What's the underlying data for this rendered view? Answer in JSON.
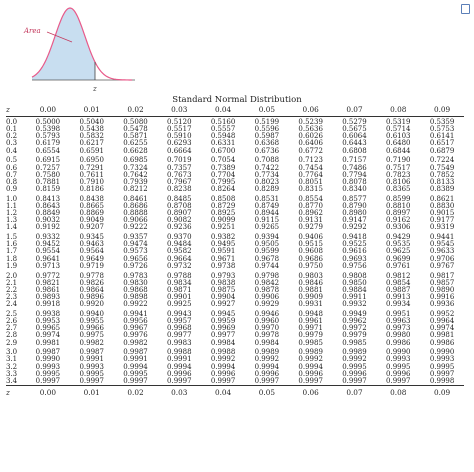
{
  "figure": {
    "area_label": "Area",
    "z_label": "z"
  },
  "title": "Standard Normal Distribution",
  "headers": [
    "z",
    "0.00",
    "0.01",
    "0.02",
    "0.03",
    "0.04",
    "0.05",
    "0.06",
    "0.07",
    "0.08",
    "0.09"
  ],
  "rows": [
    [
      "0.0",
      "0.5000",
      "0.5040",
      "0.5080",
      "0.5120",
      "0.5160",
      "0.5199",
      "0.5239",
      "0.5279",
      "0.5319",
      "0.5359"
    ],
    [
      "0.1",
      "0.5398",
      "0.5438",
      "0.5478",
      "0.5517",
      "0.5557",
      "0.5596",
      "0.5636",
      "0.5675",
      "0.5714",
      "0.5753"
    ],
    [
      "0.2",
      "0.5793",
      "0.5832",
      "0.5871",
      "0.5910",
      "0.5948",
      "0.5987",
      "0.6026",
      "0.6064",
      "0.6103",
      "0.6141"
    ],
    [
      "0.3",
      "0.6179",
      "0.6217",
      "0.6255",
      "0.6293",
      "0.6331",
      "0.6368",
      "0.6406",
      "0.6443",
      "0.6480",
      "0.6517"
    ],
    [
      "0.4",
      "0.6554",
      "0.6591",
      "0.6628",
      "0.6664",
      "0.6700",
      "0.6736",
      "0.6772",
      "0.6808",
      "0.6844",
      "0.6879"
    ],
    [
      "0.5",
      "0.6915",
      "0.6950",
      "0.6985",
      "0.7019",
      "0.7054",
      "0.7088",
      "0.7123",
      "0.7157",
      "0.7190",
      "0.7224"
    ],
    [
      "0.6",
      "0.7257",
      "0.7291",
      "0.7324",
      "0.7357",
      "0.7389",
      "0.7422",
      "0.7454",
      "0.7486",
      "0.7517",
      "0.7549"
    ],
    [
      "0.7",
      "0.7580",
      "0.7611",
      "0.7642",
      "0.7673",
      "0.7704",
      "0.7734",
      "0.7764",
      "0.7794",
      "0.7823",
      "0.7852"
    ],
    [
      "0.8",
      "0.7881",
      "0.7910",
      "0.7939",
      "0.7967",
      "0.7995",
      "0.8023",
      "0.8051",
      "0.8078",
      "0.8106",
      "0.8133"
    ],
    [
      "0.9",
      "0.8159",
      "0.8186",
      "0.8212",
      "0.8238",
      "0.8264",
      "0.8289",
      "0.8315",
      "0.8340",
      "0.8365",
      "0.8389"
    ],
    [
      "1.0",
      "0.8413",
      "0.8438",
      "0.8461",
      "0.8485",
      "0.8508",
      "0.8531",
      "0.8554",
      "0.8577",
      "0.8599",
      "0.8621"
    ],
    [
      "1.1",
      "0.8643",
      "0.8665",
      "0.8686",
      "0.8708",
      "0.8729",
      "0.8749",
      "0.8770",
      "0.8790",
      "0.8810",
      "0.8830"
    ],
    [
      "1.2",
      "0.8849",
      "0.8869",
      "0.8888",
      "0.8907",
      "0.8925",
      "0.8944",
      "0.8962",
      "0.8980",
      "0.8997",
      "0.9015"
    ],
    [
      "1.3",
      "0.9032",
      "0.9049",
      "0.9066",
      "0.9082",
      "0.9099",
      "0.9115",
      "0.9131",
      "0.9147",
      "0.9162",
      "0.9177"
    ],
    [
      "1.4",
      "0.9192",
      "0.9207",
      "0.9222",
      "0.9236",
      "0.9251",
      "0.9265",
      "0.9279",
      "0.9292",
      "0.9306",
      "0.9319"
    ],
    [
      "1.5",
      "0.9332",
      "0.9345",
      "0.9357",
      "0.9370",
      "0.9382",
      "0.9394",
      "0.9406",
      "0.9418",
      "0.9429",
      "0.9441"
    ],
    [
      "1.6",
      "0.9452",
      "0.9463",
      "0.9474",
      "0.9484",
      "0.9495",
      "0.9505",
      "0.9515",
      "0.9525",
      "0.9535",
      "0.9545"
    ],
    [
      "1.7",
      "0.9554",
      "0.9564",
      "0.9573",
      "0.9582",
      "0.9591",
      "0.9599",
      "0.9608",
      "0.9616",
      "0.9625",
      "0.9633"
    ],
    [
      "1.8",
      "0.9641",
      "0.9649",
      "0.9656",
      "0.9664",
      "0.9671",
      "0.9678",
      "0.9686",
      "0.9693",
      "0.9699",
      "0.9706"
    ],
    [
      "1.9",
      "0.9713",
      "0.9719",
      "0.9726",
      "0.9732",
      "0.9738",
      "0.9744",
      "0.9750",
      "0.9756",
      "0.9761",
      "0.9767"
    ],
    [
      "2.0",
      "0.9772",
      "0.9778",
      "0.9783",
      "0.9788",
      "0.9793",
      "0.9798",
      "0.9803",
      "0.9808",
      "0.9812",
      "0.9817"
    ],
    [
      "2.1",
      "0.9821",
      "0.9826",
      "0.9830",
      "0.9834",
      "0.9838",
      "0.9842",
      "0.9846",
      "0.9850",
      "0.9854",
      "0.9857"
    ],
    [
      "2.2",
      "0.9861",
      "0.9864",
      "0.9868",
      "0.9871",
      "0.9875",
      "0.9878",
      "0.9881",
      "0.9884",
      "0.9887",
      "0.9890"
    ],
    [
      "2.3",
      "0.9893",
      "0.9896",
      "0.9898",
      "0.9901",
      "0.9904",
      "0.9906",
      "0.9909",
      "0.9911",
      "0.9913",
      "0.9916"
    ],
    [
      "2.4",
      "0.9918",
      "0.9920",
      "0.9922",
      "0.9925",
      "0.9927",
      "0.9929",
      "0.9931",
      "0.9932",
      "0.9934",
      "0.9936"
    ],
    [
      "2.5",
      "0.9938",
      "0.9940",
      "0.9941",
      "0.9943",
      "0.9945",
      "0.9946",
      "0.9948",
      "0.9949",
      "0.9951",
      "0.9952"
    ],
    [
      "2.6",
      "0.9953",
      "0.9955",
      "0.9956",
      "0.9957",
      "0.9959",
      "0.9960",
      "0.9961",
      "0.9962",
      "0.9963",
      "0.9964"
    ],
    [
      "2.7",
      "0.9965",
      "0.9966",
      "0.9967",
      "0.9968",
      "0.9969",
      "0.9970",
      "0.9971",
      "0.9972",
      "0.9973",
      "0.9974"
    ],
    [
      "2.8",
      "0.9974",
      "0.9975",
      "0.9976",
      "0.9977",
      "0.9977",
      "0.9978",
      "0.9979",
      "0.9979",
      "0.9980",
      "0.9981"
    ],
    [
      "2.9",
      "0.9981",
      "0.9982",
      "0.9982",
      "0.9983",
      "0.9984",
      "0.9984",
      "0.9985",
      "0.9985",
      "0.9986",
      "0.9986"
    ],
    [
      "3.0",
      "0.9987",
      "0.9987",
      "0.9987",
      "0.9988",
      "0.9988",
      "0.9989",
      "0.9989",
      "0.9989",
      "0.9990",
      "0.9990"
    ],
    [
      "3.1",
      "0.9990",
      "0.9991",
      "0.9991",
      "0.9991",
      "0.9992",
      "0.9992",
      "0.9992",
      "0.9992",
      "0.9993",
      "0.9993"
    ],
    [
      "3.2",
      "0.9993",
      "0.9993",
      "0.9994",
      "0.9994",
      "0.9994",
      "0.9994",
      "0.9994",
      "0.9995",
      "0.9995",
      "0.9995"
    ],
    [
      "3.3",
      "0.9995",
      "0.9995",
      "0.9995",
      "0.9996",
      "0.9996",
      "0.9996",
      "0.9996",
      "0.9996",
      "0.9996",
      "0.9997"
    ],
    [
      "3.4",
      "0.9997",
      "0.9997",
      "0.9997",
      "0.9997",
      "0.9997",
      "0.9997",
      "0.9997",
      "0.9997",
      "0.9997",
      "0.9998"
    ]
  ],
  "colors": {
    "curve": "#e85a8a",
    "shade": "#c8def0",
    "area_label": "#c43a5e",
    "icon": "#5b7fb8"
  },
  "corner_icon": "square-icon"
}
